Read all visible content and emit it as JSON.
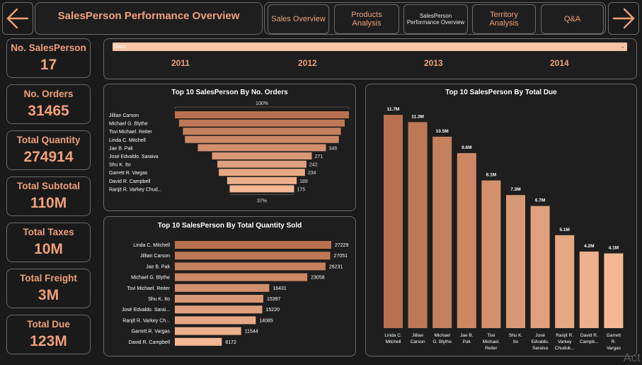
{
  "header": {
    "title": "SalesPerson Performance Overview",
    "tabs": [
      {
        "label": "Sales Overview",
        "active": false
      },
      {
        "label": "Products Analysis",
        "active": false
      },
      {
        "label": "SalesPerson Performance Overview",
        "active": true
      },
      {
        "label": "Territory Analysis",
        "active": false
      },
      {
        "label": "Q&A",
        "active": false
      }
    ]
  },
  "kpis": [
    {
      "label": "No. SalesPerson",
      "value": "17"
    },
    {
      "label": "No. Orders",
      "value": "31465"
    },
    {
      "label": "Total Quantity",
      "value": "274914"
    },
    {
      "label": "Total Subtotal",
      "value": "110M"
    },
    {
      "label": "Total Taxes",
      "value": "10M"
    },
    {
      "label": "Total Freight",
      "value": "3M"
    },
    {
      "label": "Total Due",
      "value": "123M"
    }
  ],
  "slicer": {
    "label": "Date",
    "years": [
      "2011",
      "2012",
      "2013",
      "2014"
    ]
  },
  "colors": {
    "accent": "#f0a07a",
    "bar_dark": "#b8704e",
    "bar_light": "#f4b894",
    "background": "#1a1a1a"
  },
  "watermark": "Act",
  "chart_data": [
    {
      "type": "funnel",
      "title": "Top 10 SalesPerson By No. Orders",
      "categories": [
        "Jillian Carson",
        "Michael G. Blythe",
        "Tsvi Michael. Reiter",
        "Linda C. Mitchell",
        "Jae B. Pak",
        "José Edvaldo. Saraiva",
        "Shu K. Ito",
        "Garrett R. Vargas",
        "David R. Campbell",
        "Ranjit R. Varkey Chud..."
      ],
      "values": [
        473,
        450,
        429,
        418,
        348,
        271,
        242,
        234,
        189,
        175
      ],
      "value_labels": [
        "",
        "",
        "",
        "",
        "348",
        "271",
        "242",
        "234",
        "189",
        "175"
      ],
      "top_label": "100%",
      "bottom_label": "37%"
    },
    {
      "type": "bar",
      "orientation": "horizontal",
      "title": "Top 10 SalesPerson By Total Quantity Sold",
      "categories": [
        "Linda C. Mitchell",
        "Jillian Carson",
        "Jae B. Pak",
        "Michael G. Blythe",
        "Tsvi Michael. Reiter",
        "Shu K. Ito",
        "José Edvaldo. Sarai...",
        "Ranjit R. Varkey Ch...",
        "Garrett R. Vargas",
        "David R. Campbell"
      ],
      "values": [
        27229,
        27051,
        26231,
        23058,
        16431,
        15397,
        15220,
        14085,
        11544,
        8172
      ],
      "value_labels": [
        "27229",
        "27051",
        "26231",
        "23058",
        "16431",
        "15397",
        "15220",
        "14085",
        "11544",
        "8172"
      ]
    },
    {
      "type": "bar",
      "orientation": "vertical",
      "title": "Top 10 SalesPerson By Total Due",
      "categories": [
        [
          "Linda C.",
          "Mitchell"
        ],
        [
          "Jillian",
          "Carson"
        ],
        [
          "Michael",
          "G. Blythe"
        ],
        [
          "Jae B.",
          "Pak"
        ],
        [
          "Tsvi",
          "Michael.",
          "Reiter"
        ],
        [
          "Shu K.",
          "Ito"
        ],
        [
          "José",
          "Edvaldo.",
          "Saraiva"
        ],
        [
          "Ranjit R.",
          "Varkey",
          "Chuduk..."
        ],
        [
          "David R.",
          "Campb..."
        ],
        [
          "Garrett",
          "R.",
          "Vargas"
        ]
      ],
      "values": [
        11.7,
        11.3,
        10.5,
        9.6,
        8.1,
        7.3,
        6.7,
        5.1,
        4.2,
        4.1
      ],
      "value_labels": [
        "11.7M",
        "11.3M",
        "10.5M",
        "9.6M",
        "8.1M",
        "7.3M",
        "6.7M",
        "5.1M",
        "4.2M",
        "4.1M"
      ]
    }
  ]
}
